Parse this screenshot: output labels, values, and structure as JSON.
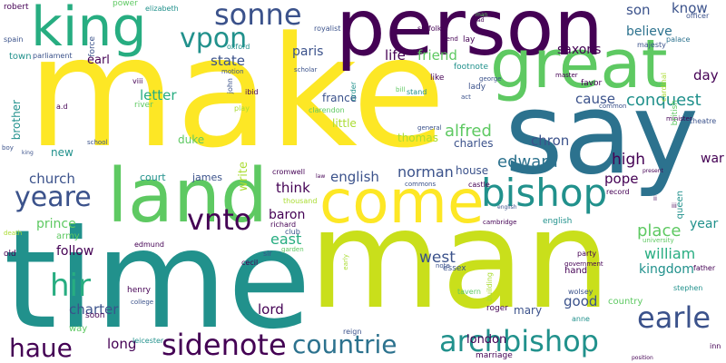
{
  "colors": {
    "background": "#ffffff",
    "purple": "#440154",
    "indigo": "#3b528b",
    "blue": "#2c728e",
    "teal": "#21918c",
    "green_teal": "#27ad81",
    "green": "#5ec962",
    "yellow_green": "#aadc32",
    "yellow": "#fde725"
  },
  "words": [
    "make",
    "say",
    "man",
    "time",
    "person",
    "great",
    "land",
    "come",
    "king",
    "bishop",
    "archbishop",
    "countrie",
    "sidenote",
    "earle",
    "vnto",
    "hir",
    "haue",
    "yeare",
    "vpon",
    "sonne",
    "william",
    "edward",
    "norman",
    "english",
    "alfred",
    "conquest",
    "place",
    "church",
    "chron",
    "east",
    "baron",
    "think",
    "letter",
    "state",
    "paris",
    "life",
    "friend",
    "cause",
    "believe",
    "son",
    "know",
    "day",
    "high",
    "pope",
    "kingdom",
    "west",
    "good",
    "charter",
    "lord",
    "long",
    "london",
    "mary",
    "follow",
    "prince",
    "year",
    "war",
    "earl",
    "saxons",
    "france",
    "duke",
    "james",
    "court",
    "write",
    "thomas",
    "charles",
    "house",
    "brother",
    "new",
    "little",
    "army",
    "robert",
    "power",
    "elizabeth",
    "spain",
    "force",
    "town",
    "parliament",
    "oxford",
    "royalist",
    "suffolk",
    "majesty",
    "palace",
    "theatre",
    "officer",
    "favor",
    "lady",
    "footnote",
    "clarendon",
    "ibid",
    "john",
    "river",
    "viii",
    "play",
    "motion",
    "scholar",
    "order",
    "send",
    "lay",
    "stand",
    "act",
    "cardinal",
    "minister",
    "british",
    "general",
    "common",
    "cromwell",
    "thousand",
    "commons",
    "castle",
    "record",
    "queen",
    "richard",
    "club",
    "edmund",
    "sir",
    "garden",
    "cecil",
    "old",
    "death",
    "essex",
    "party",
    "government",
    "university",
    "father",
    "stephen",
    "building",
    "wolsey",
    "hand",
    "country",
    "henry",
    "college",
    "soon",
    "roger",
    "anne",
    "tavern",
    "reign",
    "marriage",
    "leicester",
    "way",
    "school",
    "english",
    "cambridge",
    "inn",
    "like",
    "george",
    "master",
    "a.d",
    "boy",
    "king",
    "man",
    "note",
    "road",
    "law",
    "ii",
    "iii",
    "early",
    "bill",
    "present",
    "english",
    "position"
  ]
}
